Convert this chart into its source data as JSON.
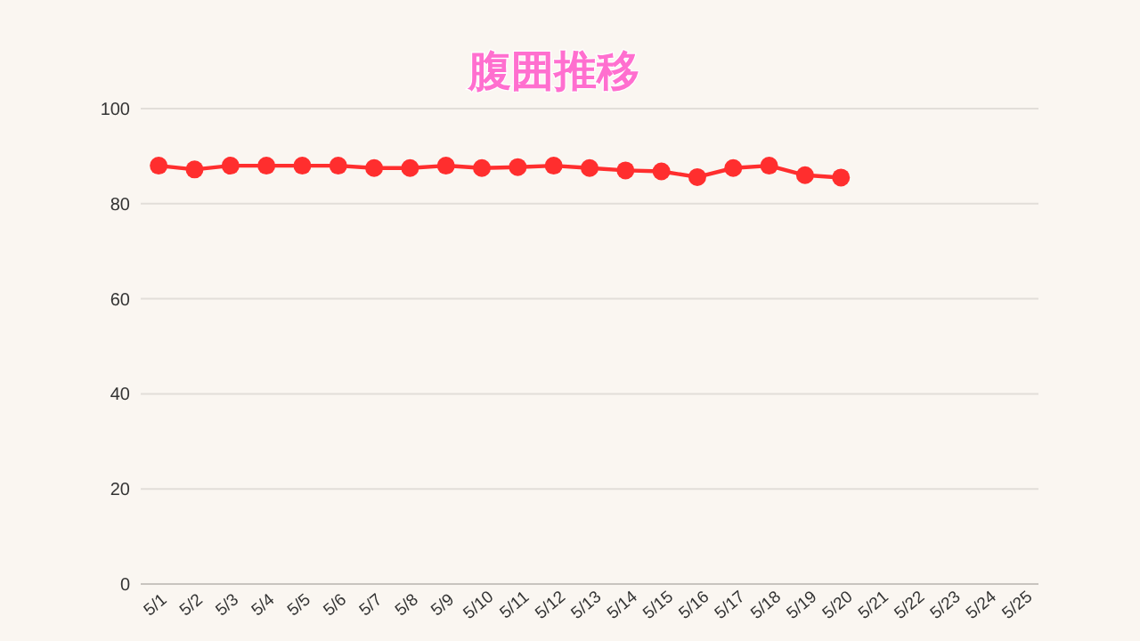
{
  "chart_data": {
    "type": "line",
    "title": "腹囲推移",
    "categories": [
      "5/1",
      "5/2",
      "5/3",
      "5/4",
      "5/5",
      "5/6",
      "5/7",
      "5/8",
      "5/9",
      "5/10",
      "5/11",
      "5/12",
      "5/13",
      "5/14",
      "5/15",
      "5/16",
      "5/17",
      "5/18",
      "5/19",
      "5/20",
      "5/21",
      "5/22",
      "5/23",
      "5/24",
      "5/25"
    ],
    "series": [
      {
        "color": "#ff2e2e",
        "values": [
          88,
          87.2,
          88,
          88,
          88,
          88,
          87.5,
          87.5,
          88,
          87.5,
          87.7,
          88,
          87.5,
          87,
          86.8,
          85.6,
          87.5,
          88,
          86,
          85.5,
          null,
          null,
          null,
          null,
          null
        ]
      }
    ],
    "ylim": [
      0,
      100
    ],
    "yticks": [
      0,
      20,
      40,
      60,
      80,
      100
    ],
    "grid": "y",
    "marker": "circle",
    "line_style": "solid"
  }
}
